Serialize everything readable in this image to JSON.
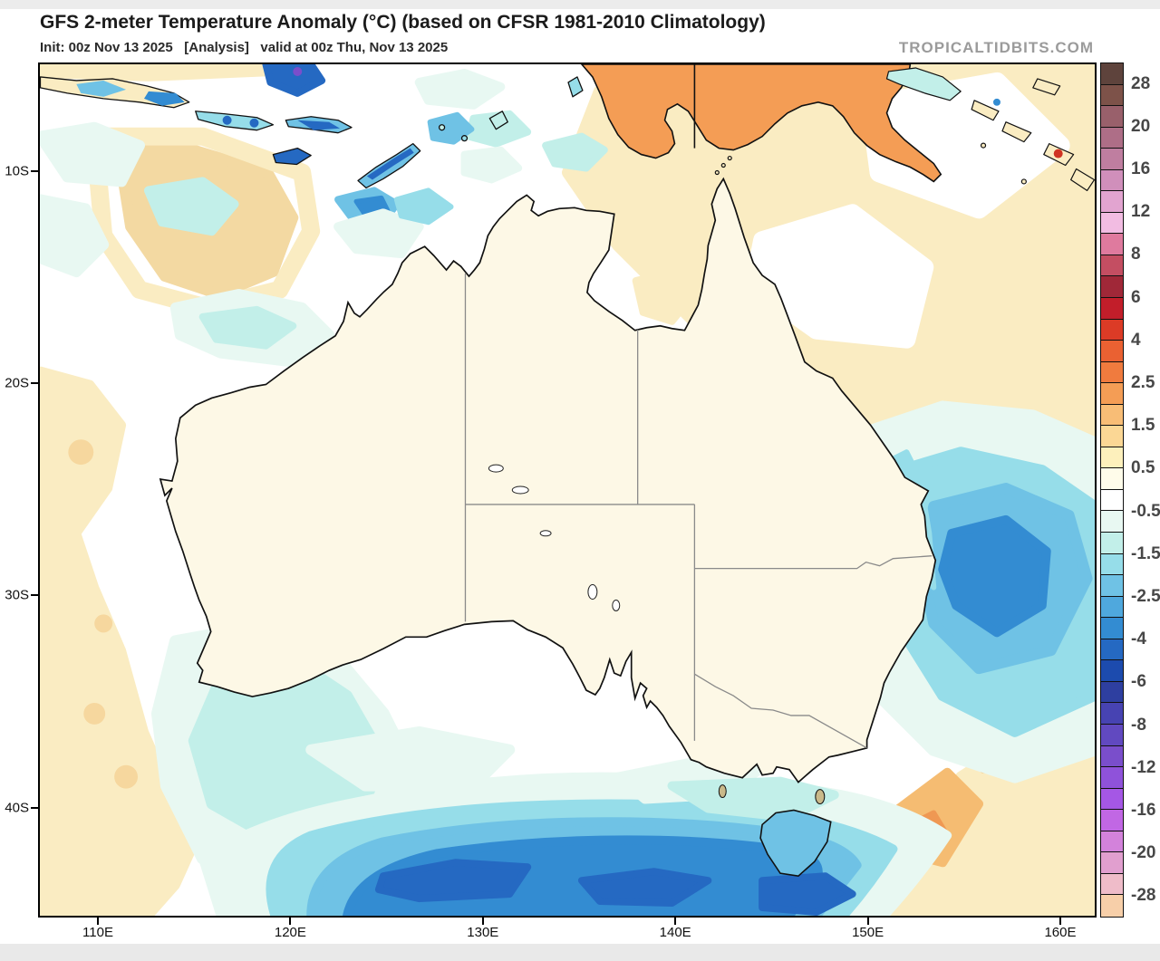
{
  "header": {
    "title": "GFS 2-meter Temperature Anomaly (°C) (based on CFSR 1981-2010 Climatology)",
    "init_line": "Init: 00z Nov 13 2025   [Analysis]   valid at 00z Thu, Nov 13 2025",
    "credit": "TROPICALTIDBITS.COM"
  },
  "map_info": {
    "model": "GFS",
    "variable": "2-meter Temperature Anomaly",
    "units": "°C",
    "climatology": "CFSR 1981-2010",
    "init_time": "00z Nov 13 2025",
    "valid_time": "00z Thu, Nov 13 2025",
    "mode": "Analysis",
    "region": "Australia / Maritime Continent"
  },
  "axes": {
    "x": {
      "ticks": [
        {
          "label": "110E",
          "lon": 110
        },
        {
          "label": "120E",
          "lon": 120
        },
        {
          "label": "130E",
          "lon": 130
        },
        {
          "label": "140E",
          "lon": 140
        },
        {
          "label": "150E",
          "lon": 150
        },
        {
          "label": "160E",
          "lon": 160
        }
      ]
    },
    "y": {
      "ticks": [
        {
          "label": "10S",
          "lat": 10
        },
        {
          "label": "20S",
          "lat": 20
        },
        {
          "label": "30S",
          "lat": 30
        },
        {
          "label": "40S",
          "lat": 40
        }
      ]
    }
  },
  "colorbar": {
    "min": -30,
    "max": 30,
    "border_color": "#111111",
    "label_color": "#474747",
    "cells": [
      {
        "from": 30,
        "to": 28,
        "color": "#5E433C"
      },
      {
        "from": 28,
        "to": 24,
        "color": "#7D5249"
      },
      {
        "from": 24,
        "to": 20,
        "color": "#99606B"
      },
      {
        "from": 20,
        "to": 18,
        "color": "#AE6E87"
      },
      {
        "from": 18,
        "to": 16,
        "color": "#BF7EA0"
      },
      {
        "from": 16,
        "to": 14,
        "color": "#D08FBB"
      },
      {
        "from": 14,
        "to": 12,
        "color": "#E2A4D0"
      },
      {
        "from": 12,
        "to": 10,
        "color": "#F2BCE2"
      },
      {
        "from": 10,
        "to": 8,
        "color": "#DF7A9E"
      },
      {
        "from": 8,
        "to": 7,
        "color": "#C44E62"
      },
      {
        "from": 7,
        "to": 6,
        "color": "#A02838"
      },
      {
        "from": 6,
        "to": 5,
        "color": "#C21E2A"
      },
      {
        "from": 5,
        "to": 4,
        "color": "#DC3B26"
      },
      {
        "from": 4,
        "to": 3,
        "color": "#EA6132"
      },
      {
        "from": 3,
        "to": 2.5,
        "color": "#F07B3E"
      },
      {
        "from": 2.5,
        "to": 2,
        "color": "#F49D55"
      },
      {
        "from": 2,
        "to": 1.5,
        "color": "#F8BD76"
      },
      {
        "from": 1.5,
        "to": 1,
        "color": "#FBD795"
      },
      {
        "from": 1,
        "to": 0.5,
        "color": "#FDF0BC"
      },
      {
        "from": 0.5,
        "to": 0,
        "color": "#FFFCEA"
      },
      {
        "from": 0,
        "to": -0.5,
        "color": "#FFFFFF"
      },
      {
        "from": -0.5,
        "to": -1,
        "color": "#E8F8F2"
      },
      {
        "from": -1,
        "to": -1.5,
        "color": "#C2EFE9"
      },
      {
        "from": -1.5,
        "to": -2,
        "color": "#96DDE9"
      },
      {
        "from": -2,
        "to": -2.5,
        "color": "#6FC2E5"
      },
      {
        "from": -2.5,
        "to": -3,
        "color": "#4FA8DD"
      },
      {
        "from": -3,
        "to": -4,
        "color": "#338CD2"
      },
      {
        "from": -4,
        "to": -5,
        "color": "#2569C2"
      },
      {
        "from": -5,
        "to": -6,
        "color": "#1C4BAE"
      },
      {
        "from": -6,
        "to": -7,
        "color": "#2E3FA0"
      },
      {
        "from": -7,
        "to": -8,
        "color": "#4743B2"
      },
      {
        "from": -8,
        "to": -10,
        "color": "#6149C0"
      },
      {
        "from": -10,
        "to": -12,
        "color": "#7A4ECB"
      },
      {
        "from": -12,
        "to": -14,
        "color": "#8F52DA"
      },
      {
        "from": -14,
        "to": -16,
        "color": "#A557E5"
      },
      {
        "from": -16,
        "to": -18,
        "color": "#C167E4"
      },
      {
        "from": -18,
        "to": -20,
        "color": "#D382DB"
      },
      {
        "from": -20,
        "to": -24,
        "color": "#E19FCF"
      },
      {
        "from": -24,
        "to": -28,
        "color": "#EFBCC9"
      },
      {
        "from": -28,
        "to": -30,
        "color": "#F7CFA9"
      }
    ],
    "labels": [
      "28",
      "20",
      "16",
      "12",
      "8",
      "6",
      "4",
      "2.5",
      "1.5",
      "0.5",
      "-0.5",
      "-1.5",
      "-2.5",
      "-4",
      "-6",
      "-8",
      "-12",
      "-16",
      "-20",
      "-28"
    ]
  }
}
